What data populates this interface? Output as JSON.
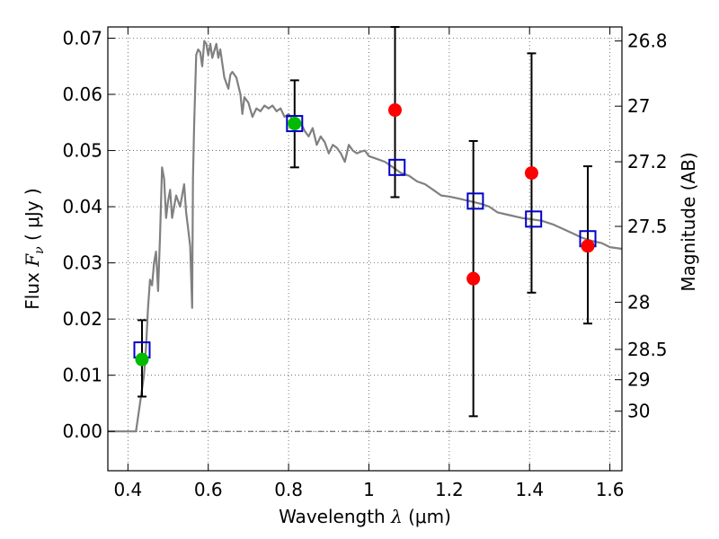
{
  "chart_data": {
    "type": "scatter",
    "title": "",
    "xlabel": {
      "prefix": "Wavelength  ",
      "var": "λ",
      "unit": " (μm)"
    },
    "ylabel": {
      "prefix": "Flux  ",
      "var": "F",
      "sub": "ν",
      "unit": "  ( μJy )"
    },
    "y2label": "Magnitude (AB)",
    "xlim": [
      0.35,
      1.63
    ],
    "ylim": [
      -0.007,
      0.072
    ],
    "grid": true,
    "grid_style": "dotted",
    "x_ticks": [
      {
        "v": 0.4,
        "label": "0.4"
      },
      {
        "v": 0.6,
        "label": "0.6"
      },
      {
        "v": 0.8,
        "label": "0.8"
      },
      {
        "v": 1.0,
        "label": "1"
      },
      {
        "v": 1.2,
        "label": "1.2"
      },
      {
        "v": 1.4,
        "label": "1.4"
      },
      {
        "v": 1.6,
        "label": "1.6"
      }
    ],
    "y_ticks": [
      {
        "v": 0.0,
        "label": "0.00"
      },
      {
        "v": 0.01,
        "label": "0.01"
      },
      {
        "v": 0.02,
        "label": "0.02"
      },
      {
        "v": 0.03,
        "label": "0.03"
      },
      {
        "v": 0.04,
        "label": "0.04"
      },
      {
        "v": 0.05,
        "label": "0.05"
      },
      {
        "v": 0.06,
        "label": "0.06"
      },
      {
        "v": 0.07,
        "label": "0.07"
      }
    ],
    "y2_ticks": [
      {
        "flux": 0.0695,
        "label": "26.8"
      },
      {
        "flux": 0.0579,
        "label": "27"
      },
      {
        "flux": 0.048,
        "label": "27.2"
      },
      {
        "flux": 0.0365,
        "label": "27.5"
      },
      {
        "flux": 0.023,
        "label": "28"
      },
      {
        "flux": 0.0146,
        "label": "28.5"
      },
      {
        "flux": 0.0092,
        "label": "29"
      },
      {
        "flux": 0.0036,
        "label": "30"
      }
    ],
    "colors": {
      "model": "#808080",
      "model_flux": "#0000cc",
      "observed": "#ff0000",
      "detected": "#00bb00",
      "errorbar": "#000000",
      "grid": "#555555"
    },
    "model_spectrum": [
      [
        0.35,
        0.0
      ],
      [
        0.42,
        0.0
      ],
      [
        0.43,
        0.005
      ],
      [
        0.44,
        0.01
      ],
      [
        0.445,
        0.015
      ],
      [
        0.45,
        0.022
      ],
      [
        0.455,
        0.027
      ],
      [
        0.46,
        0.026
      ],
      [
        0.465,
        0.03
      ],
      [
        0.47,
        0.032
      ],
      [
        0.475,
        0.025
      ],
      [
        0.48,
        0.035
      ],
      [
        0.485,
        0.047
      ],
      [
        0.49,
        0.045
      ],
      [
        0.495,
        0.038
      ],
      [
        0.5,
        0.041
      ],
      [
        0.505,
        0.043
      ],
      [
        0.51,
        0.038
      ],
      [
        0.52,
        0.042
      ],
      [
        0.53,
        0.04
      ],
      [
        0.54,
        0.044
      ],
      [
        0.545,
        0.039
      ],
      [
        0.55,
        0.036
      ],
      [
        0.555,
        0.033
      ],
      [
        0.56,
        0.022
      ],
      [
        0.562,
        0.045
      ],
      [
        0.565,
        0.055
      ],
      [
        0.57,
        0.067
      ],
      [
        0.575,
        0.068
      ],
      [
        0.58,
        0.0675
      ],
      [
        0.585,
        0.065
      ],
      [
        0.59,
        0.0695
      ],
      [
        0.595,
        0.069
      ],
      [
        0.6,
        0.067
      ],
      [
        0.605,
        0.069
      ],
      [
        0.61,
        0.0665
      ],
      [
        0.62,
        0.069
      ],
      [
        0.625,
        0.0665
      ],
      [
        0.63,
        0.068
      ],
      [
        0.64,
        0.063
      ],
      [
        0.65,
        0.061
      ],
      [
        0.655,
        0.0635
      ],
      [
        0.66,
        0.064
      ],
      [
        0.67,
        0.063
      ],
      [
        0.68,
        0.06
      ],
      [
        0.685,
        0.0565
      ],
      [
        0.69,
        0.0595
      ],
      [
        0.7,
        0.0585
      ],
      [
        0.71,
        0.056
      ],
      [
        0.72,
        0.0575
      ],
      [
        0.73,
        0.057
      ],
      [
        0.74,
        0.058
      ],
      [
        0.75,
        0.0575
      ],
      [
        0.76,
        0.058
      ],
      [
        0.77,
        0.057
      ],
      [
        0.78,
        0.0575
      ],
      [
        0.79,
        0.056
      ],
      [
        0.8,
        0.0565
      ],
      [
        0.81,
        0.0555
      ],
      [
        0.82,
        0.0545
      ],
      [
        0.83,
        0.055
      ],
      [
        0.84,
        0.0535
      ],
      [
        0.85,
        0.0525
      ],
      [
        0.86,
        0.054
      ],
      [
        0.87,
        0.051
      ],
      [
        0.88,
        0.0525
      ],
      [
        0.89,
        0.0515
      ],
      [
        0.9,
        0.0495
      ],
      [
        0.91,
        0.051
      ],
      [
        0.92,
        0.0505
      ],
      [
        0.93,
        0.0495
      ],
      [
        0.94,
        0.048
      ],
      [
        0.95,
        0.051
      ],
      [
        0.96,
        0.05
      ],
      [
        0.97,
        0.0495
      ],
      [
        0.98,
        0.0498
      ],
      [
        0.99,
        0.05
      ],
      [
        1.0,
        0.049
      ],
      [
        1.02,
        0.0485
      ],
      [
        1.04,
        0.048
      ],
      [
        1.06,
        0.047
      ],
      [
        1.08,
        0.046
      ],
      [
        1.1,
        0.0455
      ],
      [
        1.12,
        0.0445
      ],
      [
        1.14,
        0.044
      ],
      [
        1.16,
        0.043
      ],
      [
        1.18,
        0.042
      ],
      [
        1.2,
        0.0418
      ],
      [
        1.22,
        0.0415
      ],
      [
        1.25,
        0.041
      ],
      [
        1.28,
        0.0405
      ],
      [
        1.3,
        0.04
      ],
      [
        1.32,
        0.039
      ],
      [
        1.35,
        0.0385
      ],
      [
        1.38,
        0.038
      ],
      [
        1.4,
        0.0378
      ],
      [
        1.43,
        0.0375
      ],
      [
        1.46,
        0.0368
      ],
      [
        1.5,
        0.0355
      ],
      [
        1.53,
        0.0345
      ],
      [
        1.55,
        0.034
      ],
      [
        1.58,
        0.0335
      ],
      [
        1.6,
        0.0328
      ],
      [
        1.63,
        0.0325
      ]
    ],
    "model_flux_points": [
      {
        "x": 0.435,
        "y": 0.0145
      },
      {
        "x": 0.815,
        "y": 0.0548
      },
      {
        "x": 1.07,
        "y": 0.047
      },
      {
        "x": 1.265,
        "y": 0.041
      },
      {
        "x": 1.41,
        "y": 0.0378
      },
      {
        "x": 1.545,
        "y": 0.0343
      }
    ],
    "observed_points": [
      {
        "x": 0.435,
        "y": 0.0128,
        "err_low": 0.0062,
        "err_high": 0.0198,
        "detected": true
      },
      {
        "x": 0.815,
        "y": 0.0548,
        "err_low": 0.047,
        "err_high": 0.0625,
        "detected": true
      },
      {
        "x": 1.065,
        "y": 0.0572,
        "err_low": 0.0417,
        "err_high": 0.072,
        "detected": false
      },
      {
        "x": 1.26,
        "y": 0.0272,
        "err_low": 0.0027,
        "err_high": 0.0517,
        "detected": false
      },
      {
        "x": 1.405,
        "y": 0.046,
        "err_low": 0.0247,
        "err_high": 0.0673,
        "detected": false
      },
      {
        "x": 1.545,
        "y": 0.033,
        "err_low": 0.0192,
        "err_high": 0.0472,
        "detected": false
      }
    ]
  }
}
